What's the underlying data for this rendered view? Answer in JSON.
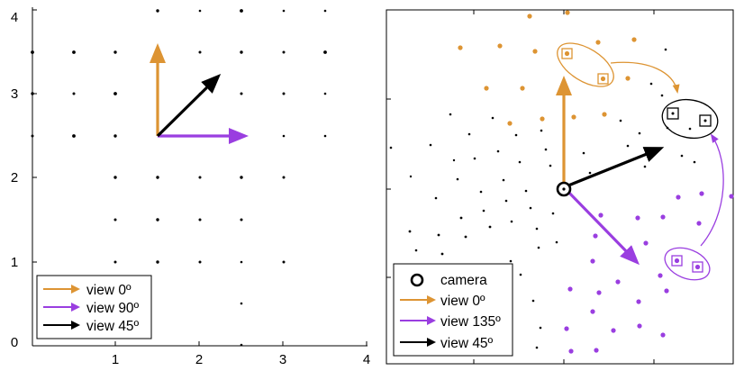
{
  "colors": {
    "orange": "#dd9433",
    "purple": "#9a3ee0",
    "black": "#000000",
    "outline": "#000000"
  },
  "left_panel": {
    "x_ticks": [
      "1",
      "2",
      "3",
      "4"
    ],
    "y_ticks": [
      "0",
      "1",
      "2",
      "3",
      "4"
    ],
    "legend": [
      {
        "label": "view 0º",
        "color": "#dd9433",
        "icon": "arrow-icon"
      },
      {
        "label": "view 90º",
        "color": "#9a3ee0",
        "icon": "arrow-icon"
      },
      {
        "label": "view 45º",
        "color": "#000000",
        "icon": "arrow-icon"
      }
    ]
  },
  "right_panel": {
    "legend": [
      {
        "label": "camera",
        "icon": "camera-circle-icon"
      },
      {
        "label": "view 0º",
        "color": "#dd9433",
        "icon": "arrow-icon"
      },
      {
        "label": "view 135º",
        "color": "#9a3ee0",
        "icon": "arrow-icon"
      },
      {
        "label": "view 45º",
        "color": "#000000",
        "icon": "arrow-icon"
      }
    ]
  }
}
